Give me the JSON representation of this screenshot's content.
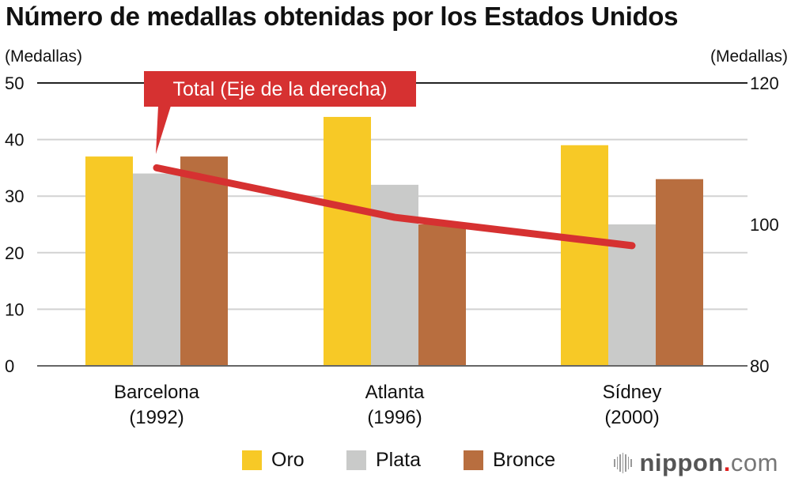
{
  "chart_data": {
    "type": "bar",
    "title": "Número de medallas obtenidas por los Estados Unidos",
    "ylabel_left": "(Medallas)",
    "ylabel_right": "(Medallas)",
    "categories": [
      {
        "name": "Barcelona",
        "year": "(1992)"
      },
      {
        "name": "Atlanta",
        "year": "(1996)"
      },
      {
        "name": "Sídney",
        "year": "(2000)"
      }
    ],
    "series": [
      {
        "name": "Oro",
        "color": "#f7c926",
        "axis": "left",
        "values": [
          37,
          44,
          39
        ]
      },
      {
        "name": "Plata",
        "color": "#c9cac9",
        "axis": "left",
        "values": [
          34,
          32,
          25
        ]
      },
      {
        "name": "Bronce",
        "color": "#b86e3f",
        "axis": "left",
        "values": [
          37,
          25,
          33
        ]
      }
    ],
    "line_series": {
      "name": "Total",
      "color": "#d63131",
      "axis": "right",
      "values": [
        108,
        101,
        97
      ]
    },
    "left_axis": {
      "ylim": [
        0,
        50
      ],
      "ticks": [
        0,
        10,
        20,
        30,
        40,
        50
      ]
    },
    "right_axis": {
      "ylim": [
        80,
        120
      ],
      "ticks": [
        80,
        100,
        120
      ]
    },
    "annotation": "Total (Eje de la derecha)",
    "grid": true,
    "legend_position": "bottom"
  },
  "legend": [
    {
      "label": "Oro",
      "color": "#f7c926"
    },
    {
      "label": "Plata",
      "color": "#c9cac9"
    },
    {
      "label": "Bronce",
      "color": "#b86e3f"
    }
  ],
  "logo": {
    "brand": "nippon",
    "dot": ".",
    "suffix": "com"
  }
}
